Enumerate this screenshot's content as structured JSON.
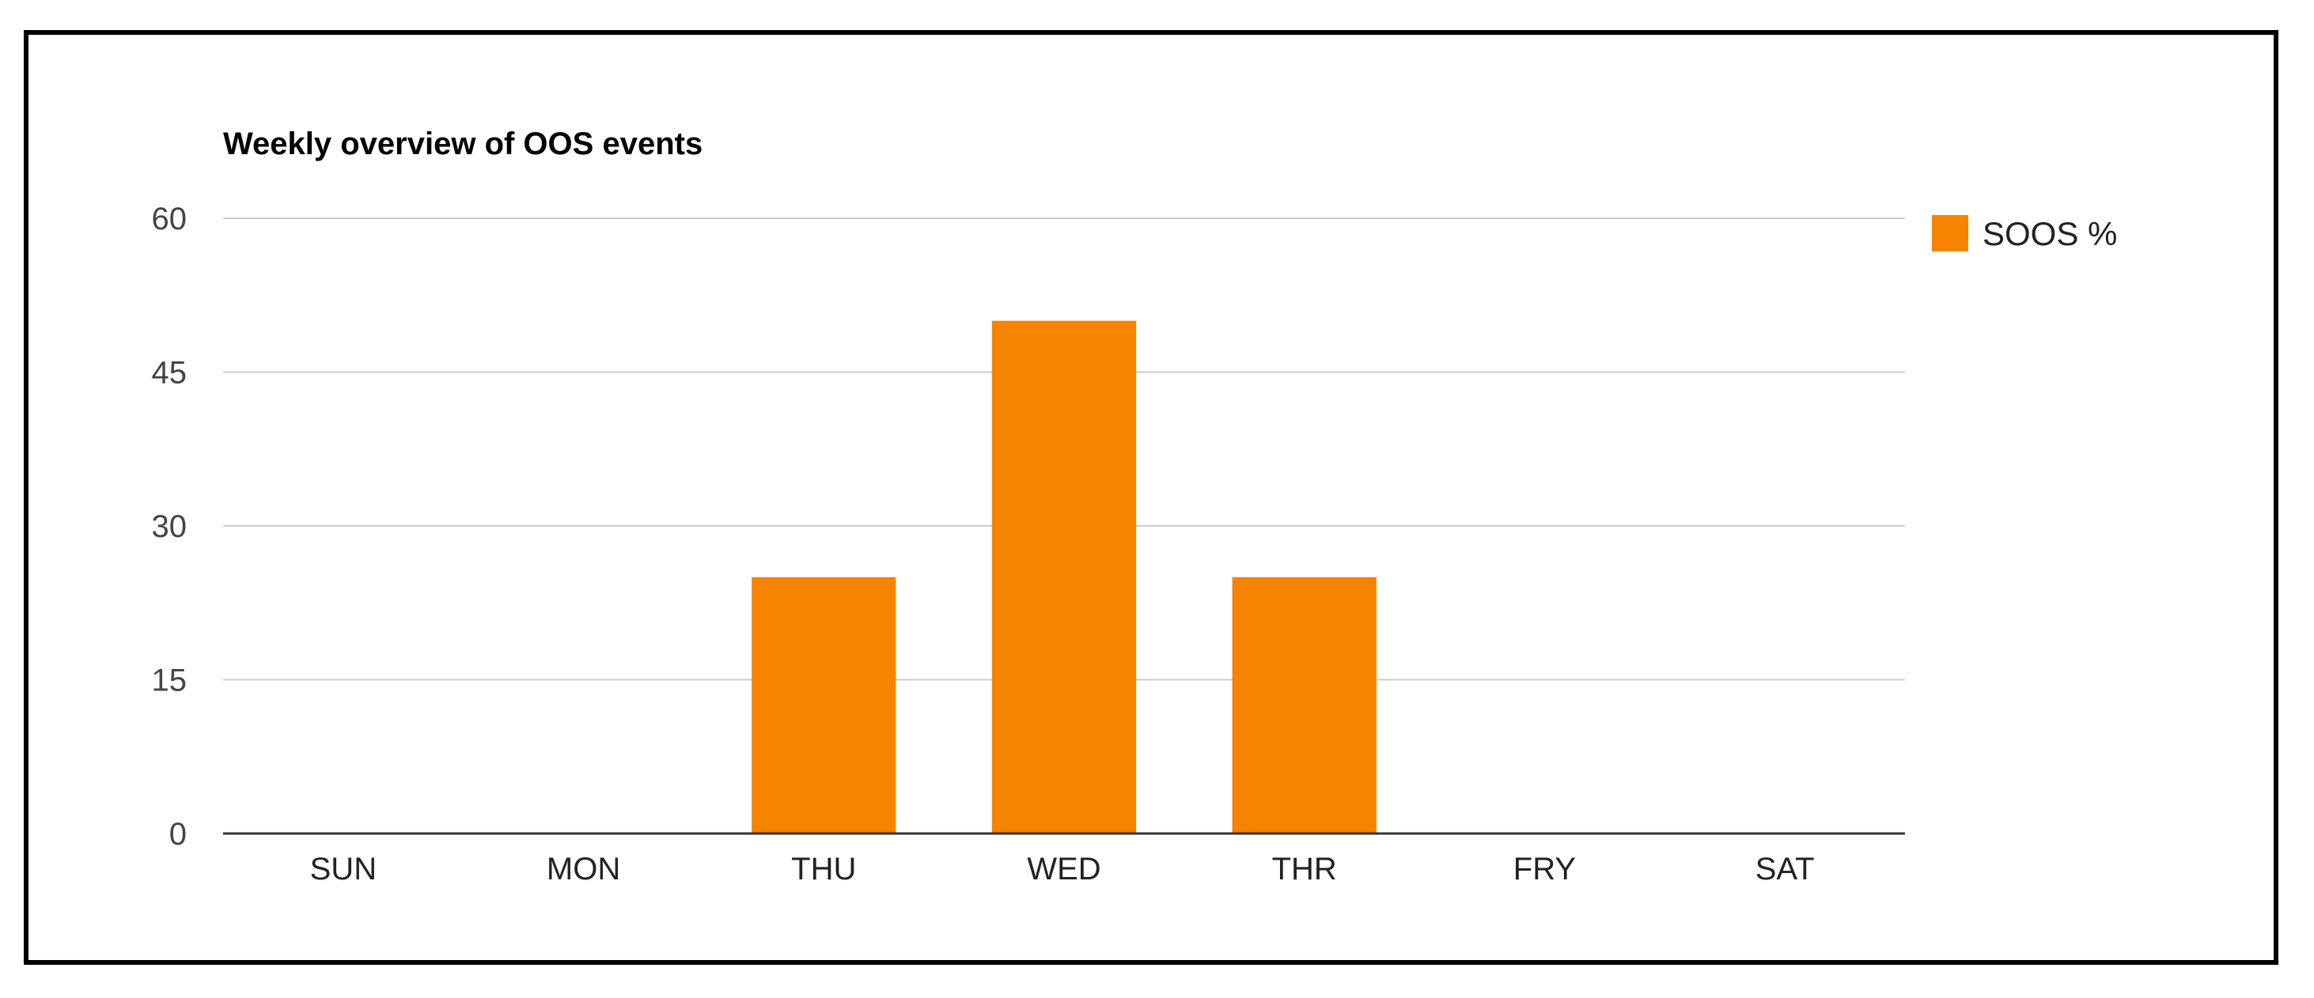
{
  "chart_data": {
    "type": "bar",
    "title": "Weekly overview of OOS events",
    "xlabel": "",
    "ylabel": "",
    "categories": [
      "SUN",
      "MON",
      "THU",
      "WED",
      "THR",
      "FRY",
      "SAT"
    ],
    "series": [
      {
        "name": "SOOS %",
        "color": "#f58300",
        "values": [
          0,
          0,
          25,
          50,
          25,
          0,
          0
        ]
      }
    ],
    "ylim": [
      0,
      60
    ],
    "yticks": [
      "0",
      "15",
      "30",
      "45",
      "60"
    ],
    "grid": true,
    "legend_position": "top-right"
  }
}
